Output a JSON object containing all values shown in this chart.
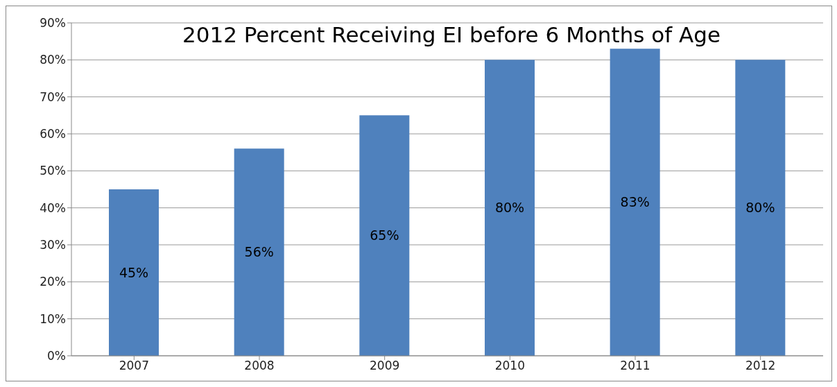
{
  "chart_data": {
    "type": "bar",
    "title": "2012 Percent Receiving EI before 6 Months of Age",
    "categories": [
      "2007",
      "2008",
      "2009",
      "2010",
      "2011",
      "2012"
    ],
    "values": [
      45,
      56,
      65,
      80,
      83,
      80
    ],
    "value_labels": [
      "45%",
      "56%",
      "65%",
      "80%",
      "83%",
      "80%"
    ],
    "color": "#4f81bd",
    "ylim": [
      0,
      90
    ],
    "yticks": [
      {
        "value": 0,
        "label": "0%"
      },
      {
        "value": 10,
        "label": "10%"
      },
      {
        "value": 20,
        "label": "20%"
      },
      {
        "value": 30,
        "label": "30%"
      },
      {
        "value": 40,
        "label": "40%"
      },
      {
        "value": 50,
        "label": "50%"
      },
      {
        "value": 60,
        "label": "60%"
      },
      {
        "value": 70,
        "label": "70%"
      },
      {
        "value": 80,
        "label": "80%"
      },
      {
        "value": 90,
        "label": "90%"
      }
    ],
    "grid": "y"
  }
}
